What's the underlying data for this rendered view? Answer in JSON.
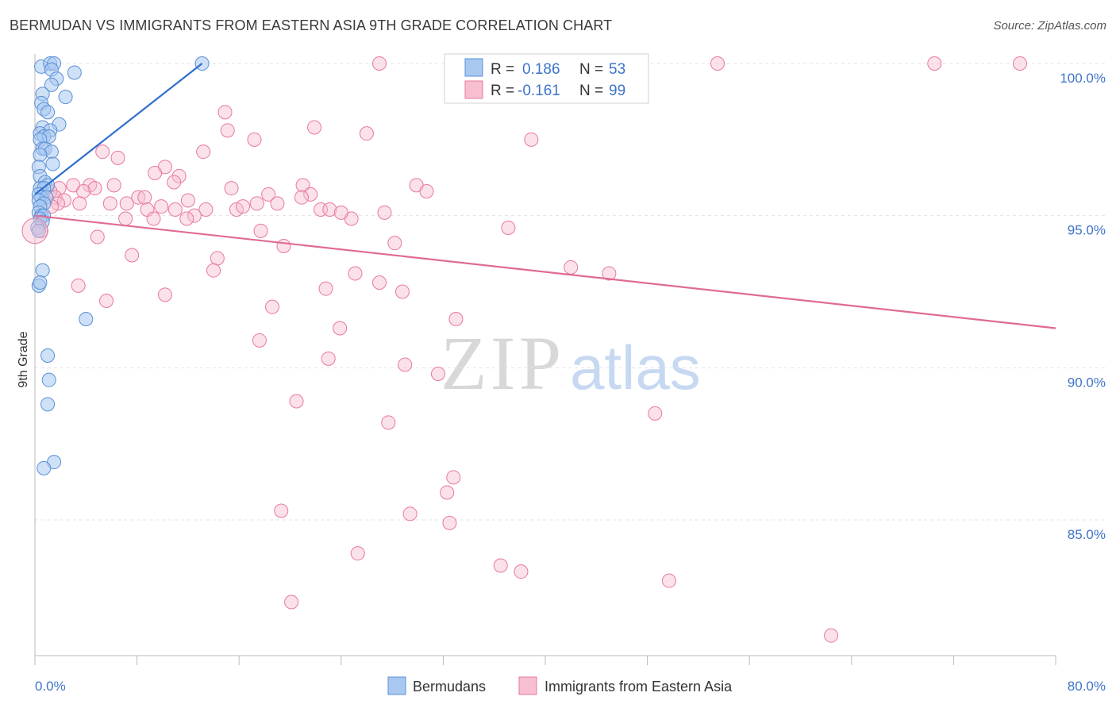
{
  "title": "BERMUDAN VS IMMIGRANTS FROM EASTERN ASIA 9TH GRADE CORRELATION CHART",
  "source": "Source: ZipAtlas.com",
  "watermark": {
    "zip": "ZIP",
    "atlas": "atlas"
  },
  "legend": {
    "r_label": "R =",
    "n_label": "N =",
    "entries": [
      {
        "name": "Bermudans",
        "r": "0.186",
        "n": "53",
        "fill": "#a8c8f0",
        "stroke": "#5b8fd6"
      },
      {
        "name": "Immigrants from Eastern Asia",
        "r": "-0.161",
        "n": "99",
        "fill": "#f7bfd0",
        "stroke": "#e8799c"
      }
    ]
  },
  "chart_data": {
    "type": "scatter",
    "title": "BERMUDAN VS IMMIGRANTS FROM EASTERN ASIA 9TH GRADE CORRELATION CHART",
    "xlabel": "",
    "ylabel": "9th Grade",
    "xlim": [
      0,
      80
    ],
    "ylim": [
      80.5,
      100.5
    ],
    "x_tick_labels": [
      "0.0%",
      "80.0%"
    ],
    "y_ticks": [
      100,
      95,
      90,
      85
    ],
    "y_tick_labels": [
      "100.0%",
      "95.0%",
      "90.0%",
      "85.0%"
    ],
    "series": [
      {
        "name": "Bermudans",
        "color": "#5b8fd6",
        "trend": {
          "x": [
            0,
            13.1
          ],
          "y": [
            95.7,
            100.0
          ],
          "color": "#2f6fcf"
        },
        "points": [
          [
            0.5,
            99.9
          ],
          [
            1.2,
            100.0
          ],
          [
            1.5,
            100.0
          ],
          [
            1.3,
            99.8
          ],
          [
            3.1,
            99.7
          ],
          [
            1.7,
            99.5
          ],
          [
            1.3,
            99.3
          ],
          [
            0.6,
            99.0
          ],
          [
            2.4,
            98.9
          ],
          [
            0.5,
            98.7
          ],
          [
            0.7,
            98.5
          ],
          [
            1.0,
            98.4
          ],
          [
            1.9,
            98.0
          ],
          [
            0.6,
            97.9
          ],
          [
            1.2,
            97.8
          ],
          [
            0.4,
            97.7
          ],
          [
            0.7,
            97.6
          ],
          [
            1.1,
            97.6
          ],
          [
            0.4,
            97.5
          ],
          [
            0.6,
            97.2
          ],
          [
            0.8,
            97.2
          ],
          [
            1.3,
            97.1
          ],
          [
            0.4,
            97.0
          ],
          [
            1.4,
            96.7
          ],
          [
            0.3,
            96.6
          ],
          [
            0.4,
            96.3
          ],
          [
            0.8,
            96.1
          ],
          [
            1.0,
            96.0
          ],
          [
            0.4,
            95.9
          ],
          [
            0.7,
            95.9
          ],
          [
            0.3,
            95.7
          ],
          [
            0.5,
            95.6
          ],
          [
            0.9,
            95.6
          ],
          [
            0.3,
            95.5
          ],
          [
            0.7,
            95.4
          ],
          [
            0.4,
            95.3
          ],
          [
            0.3,
            95.1
          ],
          [
            0.5,
            95.0
          ],
          [
            0.7,
            95.0
          ],
          [
            0.4,
            94.9
          ],
          [
            0.6,
            94.8
          ],
          [
            0.2,
            94.6
          ],
          [
            0.3,
            94.5
          ],
          [
            0.6,
            93.2
          ],
          [
            0.3,
            92.7
          ],
          [
            0.4,
            92.8
          ],
          [
            4.0,
            91.6
          ],
          [
            1.0,
            90.4
          ],
          [
            1.1,
            89.6
          ],
          [
            1.0,
            88.8
          ],
          [
            1.5,
            86.9
          ],
          [
            0.7,
            86.7
          ],
          [
            13.1,
            100.0
          ]
        ]
      },
      {
        "name": "Immigrants from Eastern Asia",
        "color": "#e8799c",
        "trend": {
          "x": [
            0,
            80
          ],
          "y": [
            95.0,
            91.3
          ],
          "color": "#e06b93"
        },
        "points": [
          [
            27.0,
            100.0
          ],
          [
            34.5,
            100.0
          ],
          [
            37.6,
            100.0
          ],
          [
            53.5,
            100.0
          ],
          [
            70.5,
            100.0
          ],
          [
            77.2,
            100.0
          ],
          [
            14.9,
            98.4
          ],
          [
            15.1,
            97.8
          ],
          [
            21.9,
            97.9
          ],
          [
            26.0,
            97.7
          ],
          [
            17.2,
            97.5
          ],
          [
            38.9,
            97.5
          ],
          [
            5.3,
            97.1
          ],
          [
            13.2,
            97.1
          ],
          [
            6.5,
            96.9
          ],
          [
            10.2,
            96.6
          ],
          [
            9.4,
            96.4
          ],
          [
            11.3,
            96.3
          ],
          [
            10.9,
            96.1
          ],
          [
            3.0,
            96.0
          ],
          [
            6.2,
            96.0
          ],
          [
            4.3,
            96.0
          ],
          [
            21.0,
            96.0
          ],
          [
            1.9,
            95.9
          ],
          [
            4.7,
            95.9
          ],
          [
            15.4,
            95.9
          ],
          [
            29.9,
            96.0
          ],
          [
            3.8,
            95.8
          ],
          [
            1.2,
            95.8
          ],
          [
            18.3,
            95.7
          ],
          [
            21.6,
            95.7
          ],
          [
            30.7,
            95.8
          ],
          [
            1.6,
            95.6
          ],
          [
            2.3,
            95.5
          ],
          [
            8.1,
            95.6
          ],
          [
            8.6,
            95.6
          ],
          [
            20.9,
            95.6
          ],
          [
            1.8,
            95.4
          ],
          [
            7.2,
            95.4
          ],
          [
            12.0,
            95.5
          ],
          [
            17.4,
            95.4
          ],
          [
            19.0,
            95.4
          ],
          [
            1.3,
            95.3
          ],
          [
            8.8,
            95.2
          ],
          [
            11.0,
            95.2
          ],
          [
            13.4,
            95.2
          ],
          [
            15.8,
            95.2
          ],
          [
            16.3,
            95.3
          ],
          [
            22.4,
            95.2
          ],
          [
            23.1,
            95.2
          ],
          [
            12.5,
            95.0
          ],
          [
            27.4,
            95.1
          ],
          [
            7.1,
            94.9
          ],
          [
            9.3,
            94.9
          ],
          [
            11.9,
            94.9
          ],
          [
            24.8,
            94.9
          ],
          [
            0.5,
            94.5
          ],
          [
            37.1,
            94.6
          ],
          [
            4.9,
            94.3
          ],
          [
            28.2,
            94.1
          ],
          [
            19.5,
            94.0
          ],
          [
            7.6,
            93.7
          ],
          [
            14.3,
            93.6
          ],
          [
            42.0,
            93.3
          ],
          [
            45.0,
            93.1
          ],
          [
            14.0,
            93.2
          ],
          [
            25.1,
            93.1
          ],
          [
            3.4,
            92.7
          ],
          [
            22.8,
            92.6
          ],
          [
            27.0,
            92.8
          ],
          [
            28.8,
            92.5
          ],
          [
            10.2,
            92.4
          ],
          [
            5.6,
            92.2
          ],
          [
            18.6,
            92.0
          ],
          [
            33.0,
            91.6
          ],
          [
            23.9,
            91.3
          ],
          [
            17.6,
            90.9
          ],
          [
            23.0,
            90.3
          ],
          [
            29.0,
            90.1
          ],
          [
            31.6,
            89.8
          ],
          [
            20.5,
            88.9
          ],
          [
            27.7,
            88.2
          ],
          [
            48.6,
            88.5
          ],
          [
            32.8,
            86.4
          ],
          [
            32.3,
            85.9
          ],
          [
            19.3,
            85.3
          ],
          [
            29.4,
            85.2
          ],
          [
            32.5,
            84.9
          ],
          [
            25.3,
            83.9
          ],
          [
            36.5,
            83.5
          ],
          [
            38.1,
            83.3
          ],
          [
            49.7,
            83.0
          ],
          [
            20.1,
            82.3
          ],
          [
            62.4,
            81.2
          ],
          [
            3.5,
            95.4
          ],
          [
            5.9,
            95.4
          ],
          [
            9.9,
            95.3
          ],
          [
            24.0,
            95.1
          ],
          [
            17.7,
            94.5
          ]
        ]
      }
    ]
  }
}
